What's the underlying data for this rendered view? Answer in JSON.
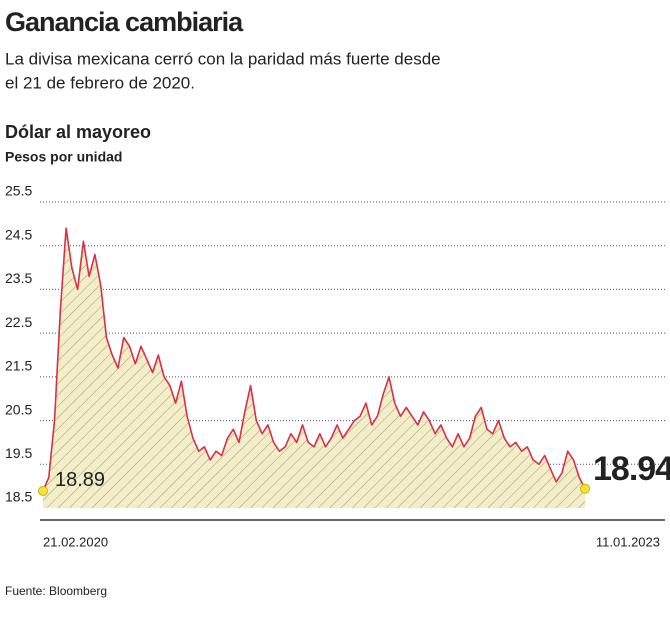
{
  "chart_data": {
    "type": "line",
    "title": "Ganancia cambiaria",
    "subtitle": [
      "La divisa mexicana cerró con la paridad más fuerte desde",
      "el 21 de febrero de 2020."
    ],
    "chart_title": "Dólar al mayoreo",
    "y_label": "Pesos por unidad",
    "source": "Fuente: Bloomberg",
    "categories": [
      "21.02.2020",
      null,
      null,
      null,
      null,
      null,
      null,
      null,
      null,
      null,
      null,
      null,
      null,
      null,
      null,
      null,
      null,
      null,
      null,
      null,
      null,
      null,
      null,
      null,
      null,
      null,
      null,
      null,
      null,
      null,
      null,
      null,
      null,
      null,
      null,
      null,
      null,
      null,
      null,
      null,
      null,
      null,
      null,
      null,
      null,
      null,
      null,
      null,
      null,
      null,
      null,
      null,
      null,
      null,
      null,
      null,
      null,
      null,
      null,
      null,
      null,
      null,
      null,
      null,
      null,
      null,
      null,
      null,
      null,
      null,
      null,
      null,
      null,
      null,
      null,
      null,
      null,
      null,
      null,
      null,
      null,
      null,
      null,
      null,
      null,
      null,
      null,
      null,
      null,
      null,
      null,
      null,
      null,
      null,
      "11.01.2023"
    ],
    "series": [
      {
        "name": "Dólar al mayoreo",
        "color": "#d9304a",
        "values": [
          18.89,
          19.2,
          20.5,
          23.0,
          24.9,
          24.0,
          23.5,
          24.6,
          23.8,
          24.3,
          23.6,
          22.4,
          22.0,
          21.7,
          22.4,
          22.2,
          21.8,
          22.2,
          21.9,
          21.6,
          22.0,
          21.5,
          21.3,
          20.9,
          21.4,
          20.6,
          20.1,
          19.8,
          19.9,
          19.6,
          19.8,
          19.7,
          20.1,
          20.3,
          20.0,
          20.7,
          21.3,
          20.5,
          20.2,
          20.4,
          20.0,
          19.8,
          19.9,
          20.2,
          20.0,
          20.4,
          20.0,
          19.9,
          20.2,
          19.9,
          20.1,
          20.4,
          20.1,
          20.3,
          20.5,
          20.6,
          20.9,
          20.4,
          20.6,
          21.1,
          21.5,
          20.9,
          20.6,
          20.8,
          20.6,
          20.4,
          20.7,
          20.5,
          20.2,
          20.4,
          20.1,
          19.9,
          20.2,
          19.9,
          20.1,
          20.6,
          20.8,
          20.3,
          20.2,
          20.5,
          20.1,
          19.9,
          20.0,
          19.8,
          19.9,
          19.6,
          19.5,
          19.7,
          19.4,
          19.1,
          19.3,
          19.8,
          19.6,
          19.2,
          18.94
        ]
      }
    ],
    "ylim": [
      18.5,
      25.5
    ],
    "yticks": [
      18.5,
      19.5,
      20.5,
      21.5,
      22.5,
      23.5,
      24.5,
      25.5
    ],
    "grid": true,
    "area_color": "#f3edc8"
  }
}
